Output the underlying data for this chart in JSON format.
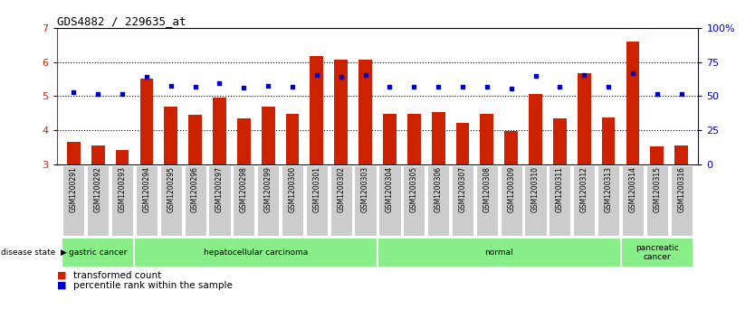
{
  "title": "GDS4882 / 229635_at",
  "samples": [
    "GSM1200291",
    "GSM1200292",
    "GSM1200293",
    "GSM1200294",
    "GSM1200295",
    "GSM1200296",
    "GSM1200297",
    "GSM1200298",
    "GSM1200299",
    "GSM1200300",
    "GSM1200301",
    "GSM1200302",
    "GSM1200303",
    "GSM1200304",
    "GSM1200305",
    "GSM1200306",
    "GSM1200307",
    "GSM1200308",
    "GSM1200309",
    "GSM1200310",
    "GSM1200311",
    "GSM1200312",
    "GSM1200313",
    "GSM1200314",
    "GSM1200315",
    "GSM1200316"
  ],
  "bar_values": [
    3.65,
    3.55,
    3.42,
    5.5,
    4.68,
    4.44,
    4.96,
    4.35,
    4.68,
    4.47,
    6.18,
    6.07,
    6.07,
    4.47,
    4.47,
    4.52,
    4.22,
    4.47,
    3.97,
    5.06,
    4.35,
    5.68,
    4.37,
    6.6,
    3.53,
    3.55
  ],
  "dot_values": [
    5.1,
    5.07,
    5.07,
    5.55,
    5.3,
    5.27,
    5.38,
    5.24,
    5.3,
    5.27,
    5.62,
    5.55,
    5.62,
    5.27,
    5.27,
    5.27,
    5.27,
    5.27,
    5.22,
    5.6,
    5.27,
    5.62,
    5.27,
    5.67,
    5.07,
    5.07
  ],
  "ylim": [
    3.0,
    7.0
  ],
  "left_yticks": [
    3,
    4,
    5,
    6,
    7
  ],
  "right_yticks_pct": [
    0,
    25,
    50,
    75,
    100
  ],
  "bar_color": "#cc2200",
  "dot_color": "#0000cc",
  "disease_groups": [
    {
      "label": "gastric cancer",
      "start": 0,
      "end": 3
    },
    {
      "label": "hepatocellular carcinoma",
      "start": 3,
      "end": 13
    },
    {
      "label": "normal",
      "start": 13,
      "end": 23
    },
    {
      "label": "pancreatic\ncancer",
      "start": 23,
      "end": 26
    }
  ],
  "disease_bg": "#88ee88",
  "xtick_bg": "#cccccc",
  "fig_bg": "#ffffff"
}
